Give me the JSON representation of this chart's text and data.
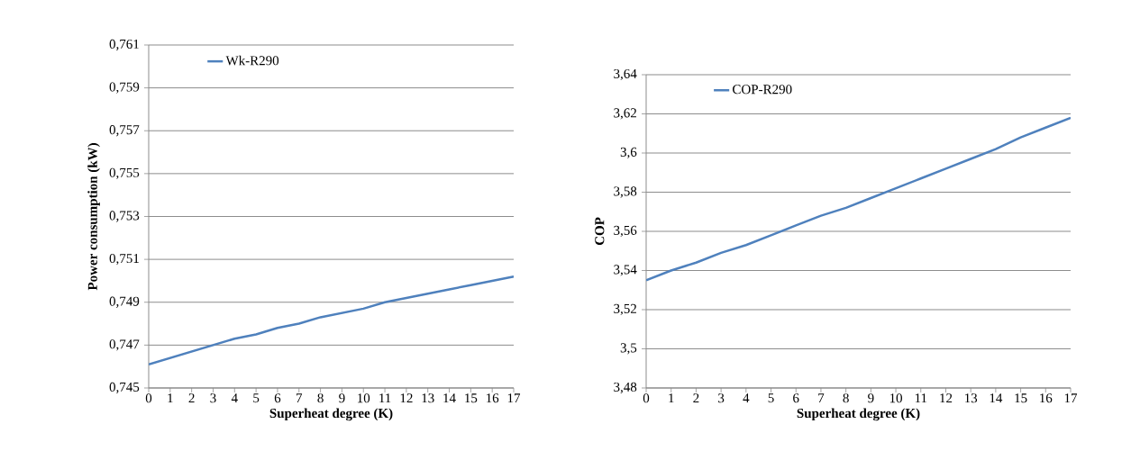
{
  "chart_data": [
    {
      "type": "line",
      "xlabel": "Superheat degree (K)",
      "ylabel": "Power consumption (kW)",
      "x": [
        0,
        1,
        2,
        3,
        4,
        5,
        6,
        7,
        8,
        9,
        10,
        11,
        12,
        13,
        14,
        15,
        16,
        17
      ],
      "series": [
        {
          "name": "Wk-R290",
          "color": "#4f81bd",
          "values": [
            0.7461,
            0.7464,
            0.7467,
            0.747,
            0.7473,
            0.7475,
            0.7478,
            0.748,
            0.7483,
            0.7485,
            0.7487,
            0.749,
            0.7492,
            0.7494,
            0.7496,
            0.7498,
            0.75,
            0.7502
          ]
        }
      ],
      "xlim": [
        0,
        17
      ],
      "xticks": [
        0,
        1,
        2,
        3,
        4,
        5,
        6,
        7,
        8,
        9,
        10,
        11,
        12,
        13,
        14,
        15,
        16,
        17
      ],
      "ylim": [
        0.745,
        0.761
      ],
      "yticks": [
        {
          "value": 0.745,
          "label": "0,745"
        },
        {
          "value": 0.747,
          "label": "0,747"
        },
        {
          "value": 0.749,
          "label": "0,749"
        },
        {
          "value": 0.751,
          "label": "0,751"
        },
        {
          "value": 0.753,
          "label": "0,753"
        },
        {
          "value": 0.755,
          "label": "0,755"
        },
        {
          "value": 0.757,
          "label": "0,757"
        },
        {
          "value": 0.759,
          "label": "0,759"
        },
        {
          "value": 0.761,
          "label": "0,761"
        }
      ],
      "grid": "y",
      "legend": "top left",
      "marker": "none",
      "line_style": "solid"
    },
    {
      "type": "line",
      "xlabel": "Superheat degree (K)",
      "ylabel": "COP",
      "x": [
        0,
        1,
        2,
        3,
        4,
        5,
        6,
        7,
        8,
        9,
        10,
        11,
        12,
        13,
        14,
        15,
        16,
        17
      ],
      "series": [
        {
          "name": "COP-R290",
          "color": "#4f81bd",
          "values": [
            3.535,
            3.54,
            3.544,
            3.549,
            3.553,
            3.558,
            3.563,
            3.568,
            3.572,
            3.577,
            3.582,
            3.587,
            3.592,
            3.597,
            3.602,
            3.608,
            3.613,
            3.618
          ]
        }
      ],
      "xlim": [
        0,
        17
      ],
      "xticks": [
        0,
        1,
        2,
        3,
        4,
        5,
        6,
        7,
        8,
        9,
        10,
        11,
        12,
        13,
        14,
        15,
        16,
        17
      ],
      "ylim": [
        3.48,
        3.64
      ],
      "yticks": [
        {
          "value": 3.48,
          "label": "3,48"
        },
        {
          "value": 3.5,
          "label": "3,5"
        },
        {
          "value": 3.52,
          "label": "3,52"
        },
        {
          "value": 3.54,
          "label": "3,54"
        },
        {
          "value": 3.56,
          "label": "3,56"
        },
        {
          "value": 3.58,
          "label": "3,58"
        },
        {
          "value": 3.6,
          "label": "3,6"
        },
        {
          "value": 3.62,
          "label": "3,62"
        },
        {
          "value": 3.64,
          "label": "3,64"
        }
      ],
      "grid": "y",
      "legend": "top left",
      "marker": "none",
      "line_style": "solid"
    }
  ]
}
